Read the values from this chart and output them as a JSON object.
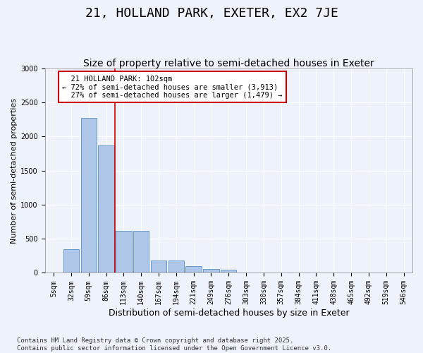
{
  "title": "21, HOLLAND PARK, EXETER, EX2 7JE",
  "subtitle": "Size of property relative to semi-detached houses in Exeter",
  "xlabel": "Distribution of semi-detached houses by size in Exeter",
  "ylabel": "Number of semi-detached properties",
  "categories": [
    "5sqm",
    "32sqm",
    "59sqm",
    "86sqm",
    "113sqm",
    "140sqm",
    "167sqm",
    "194sqm",
    "221sqm",
    "249sqm",
    "276sqm",
    "303sqm",
    "330sqm",
    "357sqm",
    "384sqm",
    "411sqm",
    "438sqm",
    "465sqm",
    "492sqm",
    "519sqm",
    "546sqm"
  ],
  "values": [
    5,
    350,
    2270,
    1870,
    620,
    620,
    185,
    185,
    95,
    60,
    50,
    5,
    5,
    0,
    0,
    0,
    0,
    0,
    0,
    0,
    0
  ],
  "bar_color": "#aec6e8",
  "bar_edge_color": "#5a8fc0",
  "property_label": "21 HOLLAND PARK: 102sqm",
  "pct_smaller": 72,
  "count_smaller": 3913,
  "pct_larger": 27,
  "count_larger": 1479,
  "vline_color": "#cc0000",
  "box_edge_color": "#cc0000",
  "footer": "Contains HM Land Registry data © Crown copyright and database right 2025.\nContains public sector information licensed under the Open Government Licence v3.0.",
  "bg_color": "#eef2fb",
  "plot_bg_color": "#eef2fb",
  "ylim": [
    0,
    3000
  ],
  "title_fontsize": 13,
  "subtitle_fontsize": 10,
  "xlabel_fontsize": 9,
  "ylabel_fontsize": 8,
  "tick_fontsize": 7,
  "footer_fontsize": 6.5,
  "annotation_fontsize": 7.5,
  "vline_x_index": 3.5
}
